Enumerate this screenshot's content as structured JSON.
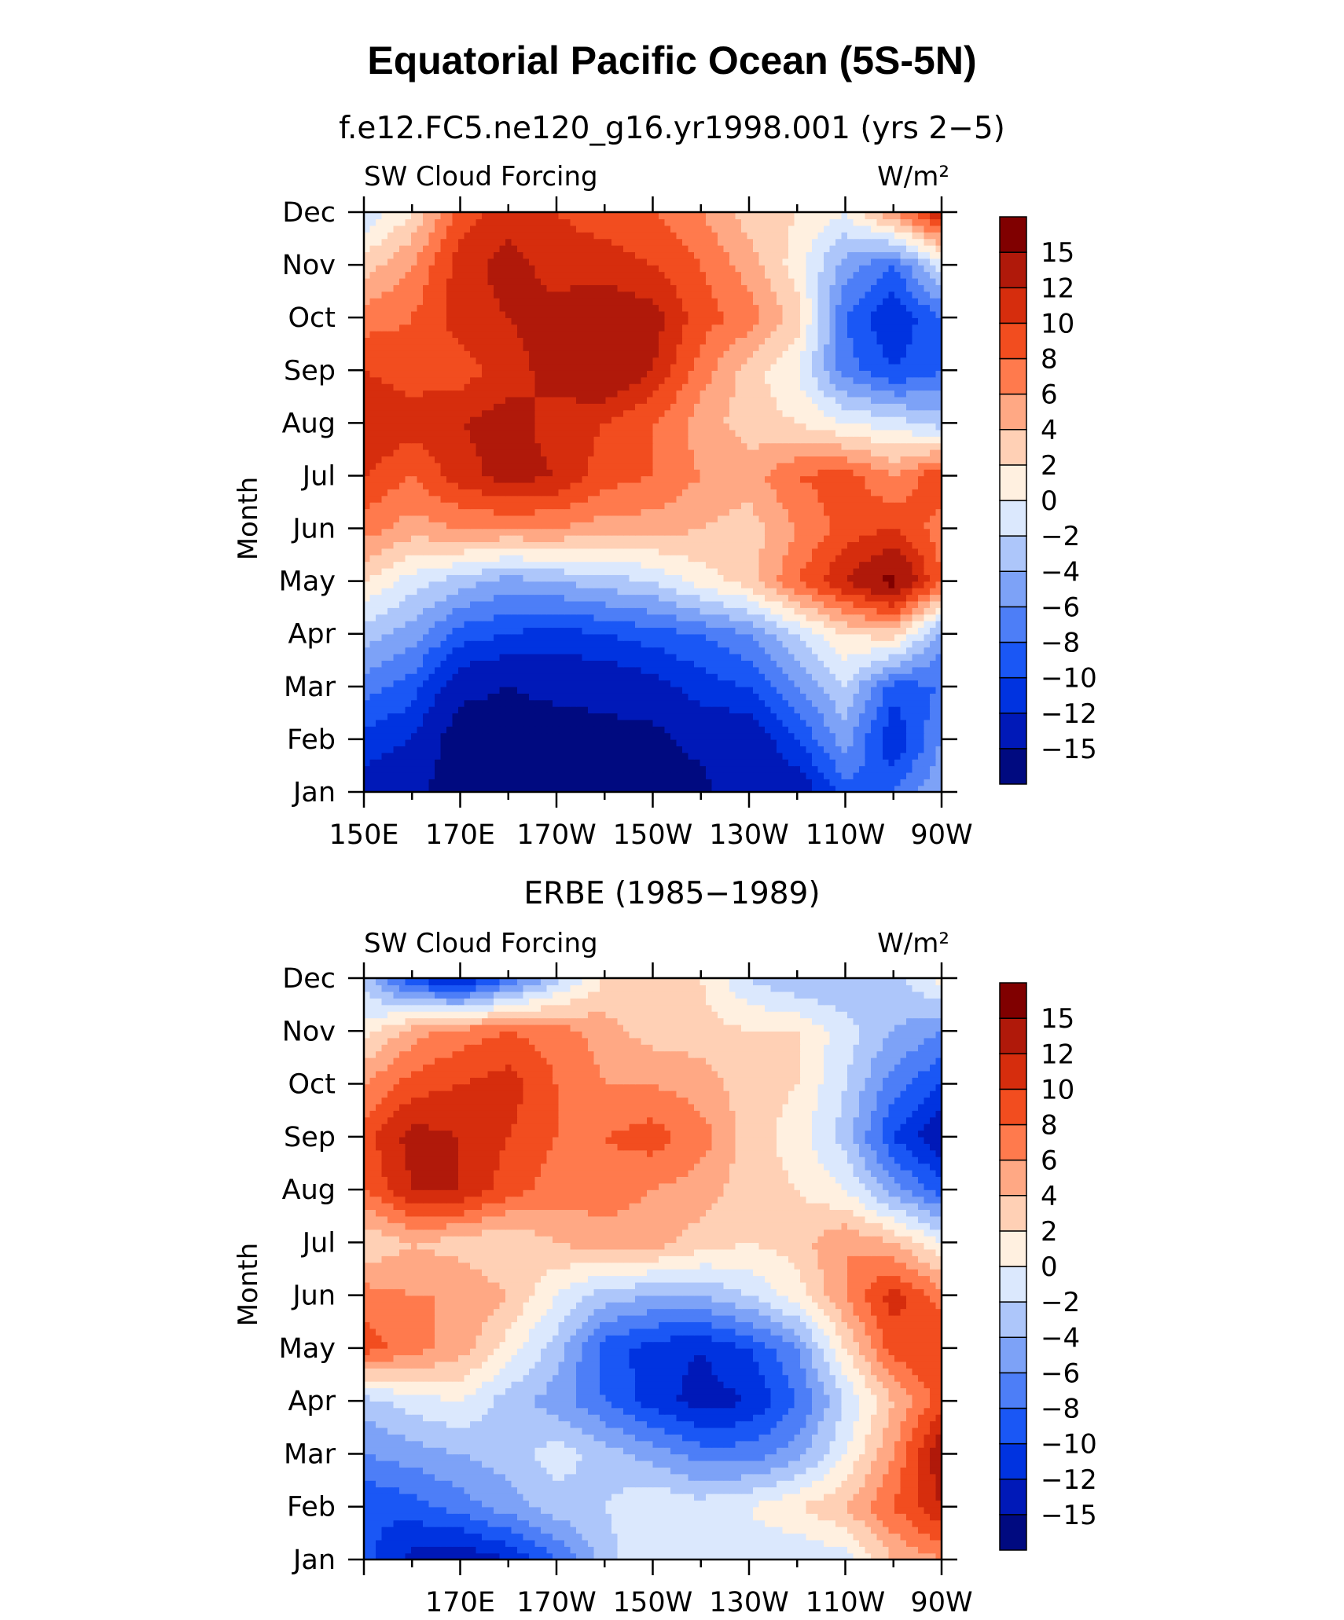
{
  "figure": {
    "title": "Equatorial Pacific Ocean (5S-5N)",
    "colormap": [
      "#000a80",
      "#0019b8",
      "#0033e0",
      "#1a57f5",
      "#4d7ef7",
      "#7da2f7",
      "#adc6fa",
      "#dbe8fd",
      "#fff0e0",
      "#ffd0b5",
      "#ffa884",
      "#ff7a4d",
      "#f24d1f",
      "#d62d0d",
      "#b0190a",
      "#800000"
    ]
  },
  "chart_data": [
    {
      "type": "heatmap",
      "subtitle": "f.e12.FC5.ne120_g16.yr1998.001 (yrs 2−5)",
      "left_label": "SW Cloud Forcing",
      "right_label": "W/m²",
      "ylabel": "Month",
      "xlabel": "",
      "y_ticks": [
        "Jan",
        "Feb",
        "Mar",
        "Apr",
        "May",
        "Jun",
        "Jul",
        "Aug",
        "Sep",
        "Oct",
        "Nov",
        "Dec"
      ],
      "x_ticks": [
        "150E",
        "170E",
        "170W",
        "150W",
        "130W",
        "110W",
        "90W"
      ],
      "colorbar_labels": [
        "15",
        "12",
        "10",
        "8",
        "6",
        "4",
        "2",
        "0",
        "−2",
        "−4",
        "−6",
        "−8",
        "−10",
        "−12",
        "−15"
      ],
      "levels": [
        -15,
        -12,
        -10,
        -8,
        -6,
        -4,
        -2,
        0,
        2,
        4,
        6,
        8,
        10,
        12,
        15
      ],
      "longitudes": [
        150,
        160,
        170,
        180,
        190,
        200,
        210,
        220,
        230,
        240,
        250,
        260,
        270
      ],
      "values": [
        [
          -13,
          -14,
          -17,
          -17,
          -17,
          -17,
          -17,
          -16,
          -12,
          -14,
          -9,
          -8,
          -4
        ],
        [
          -11,
          -12,
          -17,
          -17,
          -17,
          -16,
          -16,
          -14,
          -14,
          -10,
          -5,
          -12,
          -6
        ],
        [
          -7,
          -9,
          -14,
          -15,
          -14,
          -14,
          -13,
          -11,
          -10,
          -6,
          -2,
          -9,
          -8
        ],
        [
          -3,
          -5,
          -9,
          -10,
          -11,
          -10,
          -9,
          -8,
          -6,
          -2,
          2,
          3,
          -5
        ],
        [
          2,
          -1,
          -3,
          -5,
          -4,
          -3,
          -2,
          1,
          3,
          8,
          12,
          16,
          8
        ],
        [
          7,
          5,
          6,
          6,
          6,
          5,
          5,
          4,
          3,
          6,
          9,
          10,
          7
        ],
        [
          10,
          8,
          11,
          13,
          12,
          9,
          8,
          6,
          5,
          8,
          9,
          6,
          10
        ],
        [
          12,
          11,
          12,
          13,
          11,
          10,
          8,
          5,
          3,
          2,
          0,
          -1,
          -3
        ],
        [
          10,
          9,
          9,
          11,
          13,
          15,
          12,
          7,
          3,
          0,
          -7,
          -10,
          -8
        ],
        [
          7,
          8,
          11,
          12,
          13,
          14,
          13,
          9,
          7,
          3,
          -8,
          -12,
          -8
        ],
        [
          3,
          6,
          11,
          13,
          11,
          11,
          10,
          8,
          5,
          1,
          -5,
          -8,
          -1
        ],
        [
          -2,
          2,
          9,
          11,
          10,
          9,
          8,
          6,
          3,
          2,
          0,
          6,
          12
        ]
      ]
    },
    {
      "type": "heatmap",
      "subtitle": "ERBE (1985−1989)",
      "left_label": "SW Cloud Forcing",
      "right_label": "W/m²",
      "ylabel": "Month",
      "xlabel": "",
      "y_ticks": [
        "Jan",
        "Feb",
        "Mar",
        "Apr",
        "May",
        "Jun",
        "Jul",
        "Aug",
        "Sep",
        "Oct",
        "Nov",
        "Dec"
      ],
      "x_ticks": [
        "170E",
        "170W",
        "150W",
        "130W",
        "110W",
        "90W"
      ],
      "colorbar_labels": [
        "15",
        "12",
        "10",
        "8",
        "6",
        "4",
        "2",
        "0",
        "−2",
        "−4",
        "−6",
        "−8",
        "−10",
        "−12",
        "−15"
      ],
      "levels": [
        -15,
        -12,
        -10,
        -8,
        -6,
        -4,
        -2,
        0,
        2,
        4,
        6,
        8,
        10,
        12,
        15
      ],
      "longitudes": [
        150,
        160,
        170,
        180,
        190,
        200,
        210,
        220,
        230,
        240,
        250,
        260,
        270
      ],
      "values": [
        [
          -9,
          -13,
          -14,
          -12,
          -8,
          -3,
          0,
          0,
          -1,
          -2,
          -1,
          4,
          6
        ],
        [
          -10,
          -9,
          -7,
          -5,
          -3,
          -2,
          0,
          -1,
          0,
          2,
          4,
          8,
          12
        ],
        [
          -6,
          -5,
          -4,
          -3,
          -1,
          -3,
          -5,
          -7,
          -7,
          -5,
          0,
          6,
          14
        ],
        [
          -3,
          -1,
          0,
          -3,
          -5,
          -8,
          -11,
          -13,
          -12,
          -8,
          -2,
          4,
          9
        ],
        [
          9,
          7,
          5,
          1,
          -3,
          -9,
          -11,
          -12,
          -10,
          -6,
          2,
          9,
          10
        ],
        [
          7,
          6,
          6,
          4,
          0,
          -3,
          -4,
          -4,
          -2,
          1,
          6,
          11,
          7
        ],
        [
          2,
          4,
          3,
          2,
          4,
          5,
          5,
          3,
          2,
          3,
          6,
          4,
          0
        ],
        [
          8,
          12,
          12,
          9,
          7,
          7,
          6,
          5,
          3,
          2,
          0,
          -5,
          -9
        ],
        [
          9,
          13,
          12,
          10,
          8,
          8,
          9,
          7,
          3,
          1,
          -3,
          -10,
          -14
        ],
        [
          6,
          9,
          10,
          11,
          8,
          6,
          6,
          5,
          3,
          2,
          -2,
          -7,
          -10
        ],
        [
          1,
          5,
          7,
          8,
          7,
          5,
          3,
          3,
          2,
          2,
          -1,
          -4,
          -6
        ],
        [
          -3,
          -10,
          -13,
          -8,
          -3,
          2,
          3,
          2,
          -2,
          -4,
          -4,
          -3,
          1
        ]
      ]
    }
  ]
}
